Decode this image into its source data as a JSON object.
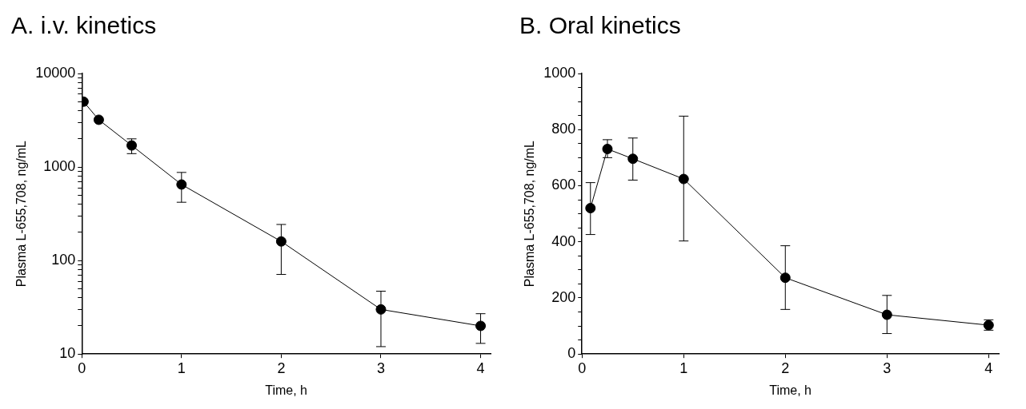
{
  "chart_data": [
    {
      "type": "line",
      "title": "A. i.v. kinetics",
      "xlabel": "Time, h",
      "ylabel": "Plasma L-655,708, ng/mL",
      "log": "y",
      "grid": false,
      "marker": "circle",
      "line_style": "solid",
      "x": [
        0.017,
        0.17,
        0.5,
        1,
        2,
        3,
        4
      ],
      "series": [
        {
          "color": "#000000",
          "values": [
            5000,
            3200,
            1700,
            650,
            160,
            30,
            20
          ],
          "errors": [
            null,
            null,
            [
              1390,
              2000
            ],
            [
              420,
              875
            ],
            [
              71,
              243
            ],
            [
              12,
              47
            ],
            [
              13,
              27
            ]
          ]
        }
      ],
      "xlim": [
        0,
        4.1
      ],
      "xticks": [
        0,
        1,
        2,
        3,
        4
      ],
      "ylim": [
        10,
        10000
      ],
      "yticks": [
        10,
        {
          "value": 20,
          "label": null
        },
        {
          "value": 30,
          "label": null
        },
        {
          "value": 40,
          "label": null
        },
        {
          "value": 50,
          "label": null
        },
        {
          "value": 60,
          "label": null
        },
        {
          "value": 70,
          "label": null
        },
        {
          "value": 80,
          "label": null
        },
        {
          "value": 90,
          "label": null
        },
        100,
        {
          "value": 200,
          "label": null
        },
        {
          "value": 300,
          "label": null
        },
        {
          "value": 400,
          "label": null
        },
        {
          "value": 500,
          "label": null
        },
        {
          "value": 600,
          "label": null
        },
        {
          "value": 700,
          "label": null
        },
        {
          "value": 800,
          "label": null
        },
        {
          "value": 900,
          "label": null
        },
        1000,
        {
          "value": 2000,
          "label": null
        },
        {
          "value": 3000,
          "label": null
        },
        {
          "value": 4000,
          "label": null
        },
        {
          "value": 5000,
          "label": null
        },
        {
          "value": 6000,
          "label": null
        },
        {
          "value": 7000,
          "label": null
        },
        {
          "value": 8000,
          "label": null
        },
        {
          "value": 9000,
          "label": null
        },
        10000
      ]
    },
    {
      "type": "line",
      "title": "B. Oral kinetics",
      "xlabel": "Time, h",
      "ylabel": "Plasma L-655,708, ng/mL",
      "grid": false,
      "marker": "circle",
      "line_style": "solid",
      "x": [
        0.083,
        0.25,
        0.5,
        1,
        2,
        3,
        4
      ],
      "series": [
        {
          "color": "#000000",
          "values": [
            520,
            731,
            696,
            624,
            272,
            140,
            103
          ],
          "errors": [
            [
              426,
              611
            ],
            [
              700,
              764
            ],
            [
              620,
              770
            ],
            [
              403,
              848
            ],
            [
              159,
              386
            ],
            [
              73,
              209
            ],
            [
              85,
              122
            ]
          ]
        }
      ],
      "xlim": [
        0,
        4.1
      ],
      "xticks": [
        0,
        1,
        2,
        3,
        4
      ],
      "ylim": [
        0,
        1000
      ],
      "yticks": [
        0,
        {
          "value": 50,
          "label": null
        },
        {
          "value": 100,
          "label": null
        },
        {
          "value": 150,
          "label": null
        },
        200,
        {
          "value": 250,
          "label": null
        },
        {
          "value": 300,
          "label": null
        },
        {
          "value": 350,
          "label": null
        },
        400,
        {
          "value": 450,
          "label": null
        },
        {
          "value": 500,
          "label": null
        },
        {
          "value": 550,
          "label": null
        },
        600,
        {
          "value": 650,
          "label": null
        },
        {
          "value": 700,
          "label": null
        },
        {
          "value": 750,
          "label": null
        },
        800,
        {
          "value": 850,
          "label": null
        },
        {
          "value": 900,
          "label": null
        },
        {
          "value": 950,
          "label": null
        },
        1000
      ]
    }
  ]
}
